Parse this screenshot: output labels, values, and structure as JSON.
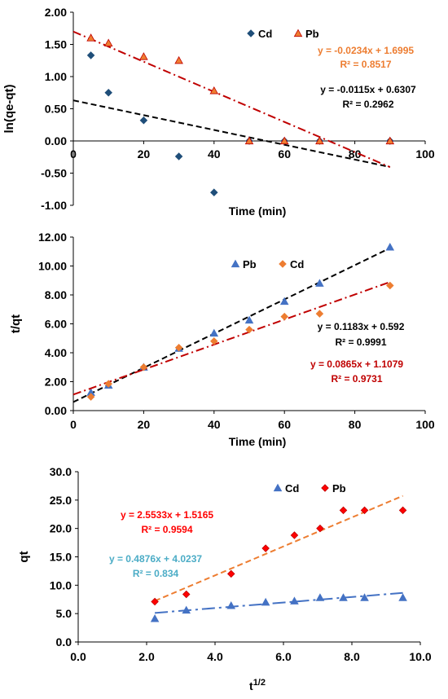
{
  "chart_data": [
    {
      "type": "scatter",
      "xlabel": "Time (min)",
      "ylabel": "ln(qe-qt)",
      "xlim": [
        0,
        100
      ],
      "ylim": [
        -1.0,
        2.0
      ],
      "xticks": [
        "0",
        "20",
        "40",
        "60",
        "80",
        "100"
      ],
      "yticks": [
        "2.00",
        "1.50",
        "1.00",
        "0.50",
        "0.00",
        "-0.50",
        "-1.00"
      ],
      "legend_position": "top-right",
      "series": [
        {
          "name": "Cd",
          "marker": "diamond",
          "color": "#1f4e79",
          "x": [
            5,
            10,
            20,
            30,
            40,
            50,
            60,
            70,
            90
          ],
          "y": [
            1.33,
            0.75,
            0.32,
            -0.24,
            -0.8,
            0.0,
            0.0,
            0.0,
            0.0
          ],
          "trend": {
            "slope": -0.0115,
            "intercept": 0.6307,
            "x_range": [
              0,
              90
            ],
            "style": "dashed",
            "color": "#000000"
          },
          "equation": "y = -0.0115x + 0.6307",
          "r2": "R² = 0.2962",
          "label_color": "#000000"
        },
        {
          "name": "Pb",
          "marker": "triangle",
          "color": "#ee7d31",
          "edge_color": "#c00000",
          "x": [
            5,
            10,
            20,
            30,
            40,
            50,
            60,
            70,
            90
          ],
          "y": [
            1.6,
            1.52,
            1.31,
            1.25,
            0.78,
            0.0,
            0.0,
            0.0,
            0.0
          ],
          "trend": {
            "slope": -0.0234,
            "intercept": 1.6995,
            "x_range": [
              0,
              90
            ],
            "style": "dashdot",
            "color": "#c00000"
          },
          "equation": "y = -0.0234x + 1.6995",
          "r2": "R² = 0.8517",
          "label_color": "#ed7d31"
        }
      ]
    },
    {
      "type": "scatter",
      "xlabel": "Time (min)",
      "ylabel": "t/qt",
      "xlim": [
        0,
        100
      ],
      "ylim": [
        0,
        12
      ],
      "xticks": [
        "0",
        "20",
        "40",
        "60",
        "80",
        "100"
      ],
      "yticks": [
        "12.00",
        "10.00",
        "8.00",
        "6.00",
        "4.00",
        "2.00",
        "0.00"
      ],
      "legend_position": "top-center",
      "series": [
        {
          "name": "Pb",
          "marker": "triangle",
          "color": "#4472c4",
          "x": [
            5,
            10,
            20,
            30,
            40,
            50,
            60,
            70,
            90
          ],
          "y": [
            1.25,
            1.75,
            3.0,
            4.3,
            5.35,
            6.25,
            7.55,
            8.8,
            11.3
          ],
          "trend": {
            "slope": 0.1183,
            "intercept": 0.592,
            "x_range": [
              0,
              90
            ],
            "style": "dashed",
            "color": "#000000"
          },
          "equation": "y = 0.1183x + 0.592",
          "r2": "R² = 0.9991",
          "label_color": "#000000"
        },
        {
          "name": "Cd",
          "marker": "diamond",
          "color": "#ed7d31",
          "x": [
            5,
            10,
            20,
            30,
            40,
            50,
            60,
            70,
            90
          ],
          "y": [
            0.95,
            1.85,
            3.0,
            4.35,
            4.8,
            5.6,
            6.5,
            6.7,
            8.65
          ],
          "trend": {
            "slope": 0.0865,
            "intercept": 1.1079,
            "x_range": [
              0,
              90
            ],
            "style": "dashdot",
            "color": "#c00000"
          },
          "equation": "y = 0.0865x + 1.1079",
          "r2": "R² = 0.9731",
          "label_color": "#c00000"
        }
      ]
    },
    {
      "type": "scatter",
      "xlabel": "t",
      "xlabel_sup": "1/2",
      "ylabel": "qt",
      "xlim": [
        0,
        10
      ],
      "ylim": [
        0,
        30
      ],
      "xticks": [
        "0.0",
        "2.0",
        "4.0",
        "6.0",
        "8.0",
        "10.0"
      ],
      "yticks": [
        "30.0",
        "25.0",
        "20.0",
        "15.0",
        "10.0",
        "5.0",
        "0.0"
      ],
      "legend_position": "top-right",
      "series": [
        {
          "name": "Cd",
          "marker": "triangle",
          "color": "#4472c4",
          "x": [
            2.24,
            3.16,
            4.47,
            5.48,
            6.32,
            7.07,
            7.75,
            8.37,
            9.49
          ],
          "y": [
            4.1,
            5.6,
            6.4,
            7.0,
            7.2,
            7.8,
            7.8,
            7.8,
            7.8
          ],
          "trend": {
            "slope": 0.4876,
            "intercept": 4.0237,
            "x_range": [
              2.24,
              9.49
            ],
            "style": "longdashdot",
            "color": "#4472c4"
          },
          "equation": "y = 0.4876x + 4.0237",
          "r2": "R² = 0.834",
          "label_color": "#4bacc6"
        },
        {
          "name": "Pb",
          "marker": "diamond",
          "color": "#ff0000",
          "edge_color": "#c00000",
          "x": [
            2.24,
            3.16,
            4.47,
            5.48,
            6.32,
            7.07,
            7.75,
            8.37,
            9.49
          ],
          "y": [
            7.1,
            8.4,
            12.0,
            16.5,
            18.8,
            20.0,
            23.2,
            23.2,
            23.2
          ],
          "trend": {
            "slope": 2.5533,
            "intercept": 1.5165,
            "x_range": [
              2.24,
              9.49
            ],
            "style": "dashed",
            "color": "#ed7d31"
          },
          "equation": "y = 2.5533x + 1.5165",
          "r2": "R² = 0.9594",
          "label_color": "#ff0000"
        }
      ]
    }
  ]
}
